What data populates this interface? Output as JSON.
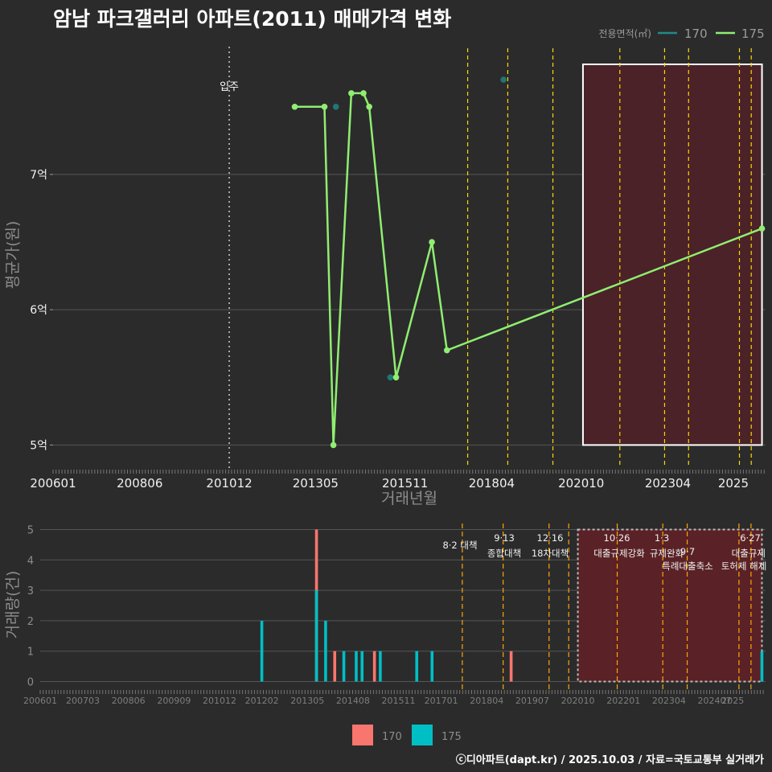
{
  "title": "암남 파크갤러리 아파트(2011) 매매가격 변화",
  "footer": "ⓒ디아파트(dapt.kr) / 2025.10.03 / 자료=국토교통부 실거래가",
  "colors": {
    "bg": "#2b2b2c",
    "grid": "#555555",
    "text": "#dddddd",
    "s170_line": "#1f8a8a",
    "s175_line": "#90ee70",
    "bar170": "#f8766d",
    "bar175": "#00bfc4",
    "event": "#ffd700",
    "eventBar": "#ffa500",
    "rectFill": "#4a2228",
    "rectFillBar": "#5a2226"
  },
  "chart_data": [
    {
      "type": "line",
      "name": "price",
      "ylabel": "평균가(원)",
      "xlabel": "거래년월",
      "ylim": [
        4.83,
        7.98
      ],
      "yticks": [
        5,
        6,
        7
      ],
      "ytick_labels": [
        "5억",
        "6억",
        "7억"
      ],
      "xlim": [
        2006.0,
        2025.9
      ],
      "xticks": [
        2006.0,
        2008.42,
        2010.92,
        2013.33,
        2015.83,
        2018.25,
        2020.75,
        2023.17,
        2025.0
      ],
      "xtick_labels": [
        "200601",
        "200806",
        "201012",
        "201305",
        "201511",
        "201804",
        "202010",
        "202304",
        "2025"
      ],
      "legend_title": "전용면적(㎡)",
      "legend_labels": [
        "170",
        "175"
      ],
      "move_in": {
        "x": 2010.92,
        "label": "입주"
      },
      "event_lines": [
        2017.58,
        2018.7,
        2019.96,
        2021.83,
        2023.08,
        2023.75,
        2025.17,
        2025.5
      ],
      "highlight": {
        "x0": 2020.8,
        "x1": 2025.8
      },
      "series": [
        {
          "name": "170",
          "x": [
            2013.9,
            2015.42,
            2018.58
          ],
          "y": [
            7.5,
            5.5,
            7.7
          ]
        },
        {
          "name": "175",
          "x": [
            2012.75,
            2013.58,
            2013.83,
            2014.33,
            2014.67,
            2014.83,
            2015.58,
            2016.58,
            2017.0,
            2025.8
          ],
          "y": [
            7.5,
            7.5,
            5.0,
            7.6,
            7.6,
            7.5,
            5.5,
            6.5,
            5.7,
            6.6
          ]
        }
      ]
    },
    {
      "type": "bar",
      "name": "volume",
      "ylabel": "거래량(건)",
      "ylim": [
        -0.25,
        5.25
      ],
      "yticks": [
        0,
        1,
        2,
        3,
        4,
        5
      ],
      "ytick_labels": [
        "0",
        "1",
        "2",
        "3",
        "4",
        "5"
      ],
      "xlim": [
        2006.0,
        2025.9
      ],
      "xticks": [
        2006.0,
        2007.17,
        2008.42,
        2009.67,
        2010.92,
        2012.08,
        2013.33,
        2014.58,
        2015.83,
        2017.0,
        2018.25,
        2019.5,
        2020.75,
        2022.0,
        2023.25,
        2024.5,
        2025.0
      ],
      "xtick_labels": [
        "200601",
        "200703",
        "200806",
        "200909",
        "201012",
        "201202",
        "201305",
        "201408",
        "201511",
        "201701",
        "201804",
        "201907",
        "202010",
        "202201",
        "202304",
        "202407",
        "2025"
      ],
      "legend_labels": [
        "170",
        "175"
      ],
      "event_lines": [
        2017.58,
        2018.7,
        2019.96,
        2020.5,
        2021.83,
        2023.08,
        2023.75,
        2025.17,
        2025.5
      ],
      "events": [
        {
          "label": "8·2 대책"
        },
        {
          "label": "9·13"
        },
        {
          "label": "종합대책"
        },
        {
          "label": "12·16"
        },
        {
          "label": "18차대책"
        },
        {
          "label": "10·26"
        },
        {
          "label": "대출규제강화"
        },
        {
          "label": "1·3"
        },
        {
          "label": "규제완화"
        },
        {
          "label": "9·7"
        },
        {
          "label": "특례대출축소"
        },
        {
          "label": "토허제 해제"
        },
        {
          "label": "6·27"
        },
        {
          "label": "대출규제"
        }
      ],
      "highlight": {
        "x0": 2020.75,
        "x1": 2025.8
      },
      "bars": [
        {
          "series": "175",
          "x": 2012.08,
          "value": 2
        },
        {
          "series": "170",
          "x": 2013.58,
          "value": 5
        },
        {
          "series": "175",
          "x": 2013.58,
          "value": 3
        },
        {
          "series": "175",
          "x": 2013.83,
          "value": 2
        },
        {
          "series": "170",
          "x": 2014.08,
          "value": 1
        },
        {
          "series": "175",
          "x": 2014.33,
          "value": 1
        },
        {
          "series": "175",
          "x": 2014.67,
          "value": 1
        },
        {
          "series": "175",
          "x": 2014.83,
          "value": 1
        },
        {
          "series": "170",
          "x": 2015.17,
          "value": 1
        },
        {
          "series": "175",
          "x": 2015.33,
          "value": 1
        },
        {
          "series": "175",
          "x": 2016.33,
          "value": 1
        },
        {
          "series": "175",
          "x": 2016.75,
          "value": 1
        },
        {
          "series": "170",
          "x": 2018.92,
          "value": 1
        },
        {
          "series": "175",
          "x": 2025.8,
          "value": 1
        }
      ]
    }
  ]
}
